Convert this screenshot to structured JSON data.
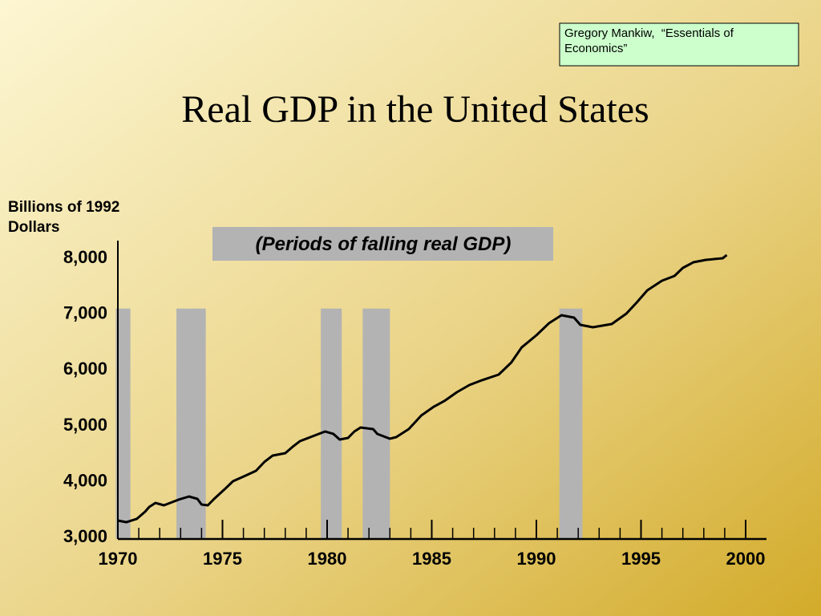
{
  "chart_data": {
    "type": "line",
    "title": "Real GDP in the United States",
    "source_note": "Gregory Mankiw,  “Essentials of Economics”",
    "y_label": "Billions of 1992 Dollars",
    "annotation": "(Periods of falling real GDP)",
    "x": [
      1970.0,
      1970.4,
      1970.9,
      1971.3,
      1971.5,
      1971.8,
      1972.2,
      1972.9,
      1973.4,
      1973.8,
      1974.0,
      1974.3,
      1974.6,
      1975.1,
      1975.5,
      1976.1,
      1976.6,
      1977.0,
      1977.4,
      1978.0,
      1978.4,
      1978.7,
      1979.3,
      1979.9,
      1980.3,
      1980.6,
      1981.0,
      1981.3,
      1981.6,
      1982.2,
      1982.4,
      1983.0,
      1983.3,
      1983.9,
      1984.5,
      1985.1,
      1985.6,
      1986.2,
      1986.8,
      1987.4,
      1988.2,
      1988.8,
      1989.3,
      1990.0,
      1990.6,
      1991.2,
      1991.8,
      1992.1,
      1992.7,
      1993.6,
      1994.3,
      1994.8,
      1995.3,
      1996.0,
      1996.6,
      1997.0,
      1997.5,
      1998.1,
      1998.9,
      1999.1
    ],
    "series": [
      {
        "name": "Real GDP",
        "color": "#000000",
        "values": [
          3273,
          3244,
          3302,
          3431,
          3517,
          3589,
          3546,
          3647,
          3704,
          3661,
          3560,
          3546,
          3661,
          3833,
          3977,
          4078,
          4164,
          4322,
          4437,
          4480,
          4609,
          4695,
          4782,
          4868,
          4825,
          4724,
          4753,
          4868,
          4940,
          4911,
          4825,
          4739,
          4767,
          4911,
          5155,
          5313,
          5414,
          5572,
          5701,
          5787,
          5888,
          6103,
          6376,
          6592,
          6807,
          6951,
          6908,
          6779,
          6736,
          6793,
          6980,
          7181,
          7397,
          7569,
          7655,
          7799,
          7899,
          7943,
          7971,
          8029
        ]
      }
    ],
    "shaded_periods": [
      [
        1969.9,
        1970.6
      ],
      [
        1972.8,
        1974.2
      ],
      [
        1979.7,
        1980.7
      ],
      [
        1981.7,
        1983.0
      ],
      [
        1991.1,
        1992.2
      ]
    ],
    "shade_top": 7070,
    "shade_color": "#b3b3b3",
    "xlim": [
      1970,
      2000
    ],
    "xticks": [
      1970,
      1975,
      1980,
      1985,
      1990,
      1995,
      2000
    ],
    "xminorticks": [
      1971,
      1972,
      1973,
      1974,
      1976,
      1977,
      1978,
      1979,
      1981,
      1982,
      1983,
      1984,
      1986,
      1987,
      1988,
      1989,
      1991,
      1992,
      1993,
      1994,
      1996,
      1997,
      1998,
      1999
    ],
    "ylim": [
      3000,
      8000
    ],
    "yticks": [
      {
        "value": 3000,
        "label": "3,000"
      },
      {
        "value": 4000,
        "label": "4,000"
      },
      {
        "value": 5000,
        "label": "5,000"
      },
      {
        "value": 6000,
        "label": "6,000"
      },
      {
        "value": 7000,
        "label": "7,000"
      },
      {
        "value": 8000,
        "label": "8,000"
      }
    ]
  }
}
